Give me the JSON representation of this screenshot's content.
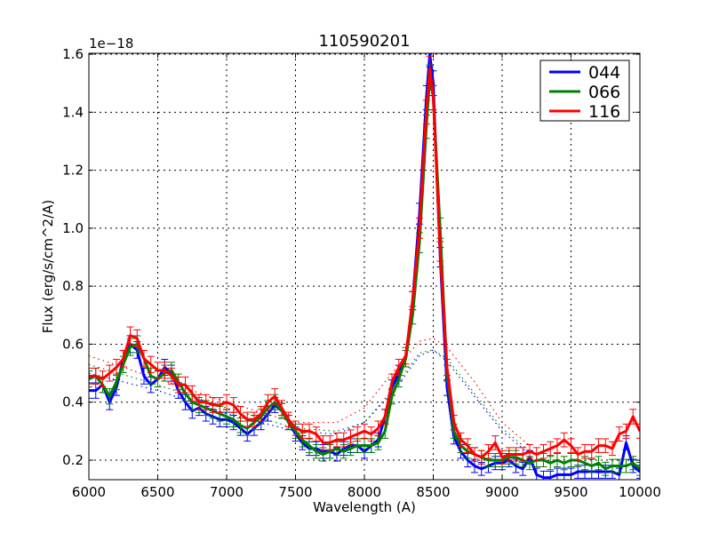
{
  "chart_data": {
    "type": "line",
    "title": "110590201",
    "xlabel": "Wavelength (A)",
    "ylabel": "Flux (erg/s/cm^2/A)",
    "y_offset_label": "1e−18",
    "xlim": [
      6000,
      10000
    ],
    "ylim": [
      0.14,
      1.61
    ],
    "x_ticks": [
      6000,
      6500,
      7000,
      7500,
      8000,
      8500,
      9000,
      9500,
      10000
    ],
    "x_tick_labels": [
      "6000",
      "6500",
      "7000",
      "7500",
      "8000",
      "8500",
      "9000",
      "9500",
      "10000"
    ],
    "y_ticks": [
      0.2,
      0.4,
      0.6,
      0.8,
      1.0,
      1.2,
      1.4,
      1.6
    ],
    "y_tick_labels": [
      "0.2",
      "0.4",
      "0.6",
      "0.8",
      "1.0",
      "1.2",
      "1.4",
      "1.6"
    ],
    "grid": true,
    "legend_position": "upper right",
    "x": [
      6000,
      6050,
      6100,
      6150,
      6200,
      6250,
      6300,
      6350,
      6400,
      6450,
      6500,
      6550,
      6600,
      6650,
      6700,
      6750,
      6800,
      6850,
      6900,
      6950,
      7000,
      7050,
      7100,
      7150,
      7200,
      7250,
      7300,
      7350,
      7400,
      7450,
      7500,
      7550,
      7600,
      7650,
      7700,
      7750,
      7800,
      7850,
      7900,
      7950,
      8000,
      8050,
      8100,
      8150,
      8200,
      8250,
      8300,
      8350,
      8400,
      8450,
      8475,
      8500,
      8550,
      8600,
      8650,
      8700,
      8750,
      8800,
      8850,
      8900,
      8950,
      9000,
      9050,
      9100,
      9150,
      9200,
      9250,
      9300,
      9350,
      9400,
      9450,
      9500,
      9550,
      9600,
      9650,
      9700,
      9750,
      9800,
      9850,
      9900,
      9950,
      10000
    ],
    "series": [
      {
        "name": "044",
        "color": "#0000ff",
        "values": [
          0.44,
          0.44,
          0.46,
          0.4,
          0.45,
          0.55,
          0.6,
          0.58,
          0.49,
          0.46,
          0.48,
          0.52,
          0.5,
          0.44,
          0.4,
          0.37,
          0.38,
          0.36,
          0.35,
          0.34,
          0.34,
          0.33,
          0.31,
          0.29,
          0.31,
          0.33,
          0.36,
          0.39,
          0.37,
          0.33,
          0.29,
          0.26,
          0.24,
          0.24,
          0.23,
          0.23,
          0.22,
          0.24,
          0.25,
          0.25,
          0.23,
          0.25,
          0.27,
          0.35,
          0.45,
          0.5,
          0.55,
          0.75,
          1.05,
          1.45,
          1.6,
          1.5,
          0.9,
          0.45,
          0.28,
          0.23,
          0.2,
          0.18,
          0.17,
          0.18,
          0.19,
          0.19,
          0.2,
          0.18,
          0.17,
          0.21,
          0.15,
          0.14,
          0.14,
          0.15,
          0.15,
          0.15,
          0.16,
          0.16,
          0.16,
          0.16,
          0.16,
          0.16,
          0.15,
          0.26,
          0.18,
          0.16
        ]
      },
      {
        "name": "066",
        "color": "#008000",
        "values": [
          0.48,
          0.49,
          0.46,
          0.42,
          0.47,
          0.53,
          0.59,
          0.6,
          0.55,
          0.49,
          0.48,
          0.5,
          0.51,
          0.47,
          0.43,
          0.4,
          0.39,
          0.38,
          0.37,
          0.36,
          0.35,
          0.34,
          0.32,
          0.31,
          0.33,
          0.35,
          0.38,
          0.4,
          0.37,
          0.33,
          0.3,
          0.27,
          0.25,
          0.23,
          0.22,
          0.23,
          0.24,
          0.23,
          0.24,
          0.25,
          0.25,
          0.25,
          0.26,
          0.3,
          0.42,
          0.48,
          0.55,
          0.7,
          0.95,
          1.35,
          1.52,
          1.45,
          1.0,
          0.5,
          0.3,
          0.25,
          0.23,
          0.22,
          0.21,
          0.2,
          0.2,
          0.2,
          0.21,
          0.21,
          0.2,
          0.19,
          0.2,
          0.2,
          0.19,
          0.2,
          0.19,
          0.2,
          0.2,
          0.19,
          0.18,
          0.19,
          0.17,
          0.18,
          0.18,
          0.18,
          0.19,
          0.17
        ]
      },
      {
        "name": "116",
        "color": "#ff0000",
        "values": [
          0.49,
          0.49,
          0.48,
          0.5,
          0.52,
          0.55,
          0.63,
          0.62,
          0.55,
          0.53,
          0.51,
          0.51,
          0.49,
          0.46,
          0.46,
          0.43,
          0.4,
          0.4,
          0.39,
          0.39,
          0.4,
          0.39,
          0.36,
          0.34,
          0.34,
          0.36,
          0.4,
          0.42,
          0.38,
          0.34,
          0.31,
          0.3,
          0.3,
          0.29,
          0.26,
          0.26,
          0.27,
          0.27,
          0.28,
          0.29,
          0.3,
          0.29,
          0.31,
          0.35,
          0.47,
          0.52,
          0.56,
          0.75,
          1.0,
          1.4,
          1.55,
          1.45,
          0.92,
          0.52,
          0.33,
          0.27,
          0.25,
          0.22,
          0.21,
          0.23,
          0.26,
          0.21,
          0.22,
          0.22,
          0.22,
          0.23,
          0.22,
          0.23,
          0.24,
          0.25,
          0.27,
          0.25,
          0.22,
          0.23,
          0.23,
          0.25,
          0.25,
          0.24,
          0.29,
          0.3,
          0.35,
          0.3
        ]
      }
    ],
    "model_curves": [
      {
        "name": "044 model (dotted)",
        "color": "#0000ff",
        "x": [
          6000,
          6500,
          7000,
          7500,
          7800,
          8000,
          8200,
          8400,
          8500,
          8600,
          8800,
          9000,
          9200
        ],
        "values": [
          0.5,
          0.44,
          0.36,
          0.3,
          0.29,
          0.33,
          0.43,
          0.56,
          0.58,
          0.54,
          0.42,
          0.3,
          0.22
        ]
      },
      {
        "name": "066 model (dotted)",
        "color": "#008000",
        "x": [
          6000,
          6500,
          7000,
          7500,
          7800,
          8000,
          8200,
          8400,
          8500,
          8600,
          8800,
          9000,
          9200
        ],
        "values": [
          0.53,
          0.46,
          0.38,
          0.31,
          0.3,
          0.33,
          0.44,
          0.57,
          0.58,
          0.55,
          0.43,
          0.31,
          0.23
        ]
      },
      {
        "name": "116 model (dotted)",
        "color": "#ff0000",
        "x": [
          6000,
          6500,
          7000,
          7500,
          7800,
          8000,
          8200,
          8400,
          8500,
          8600,
          8800,
          9000,
          9200
        ],
        "values": [
          0.56,
          0.48,
          0.4,
          0.33,
          0.33,
          0.38,
          0.5,
          0.61,
          0.62,
          0.59,
          0.47,
          0.33,
          0.25
        ]
      }
    ]
  },
  "legend": {
    "items": [
      {
        "label": "044",
        "color": "#0000ff"
      },
      {
        "label": "066",
        "color": "#008000"
      },
      {
        "label": "116",
        "color": "#ff0000"
      }
    ]
  }
}
